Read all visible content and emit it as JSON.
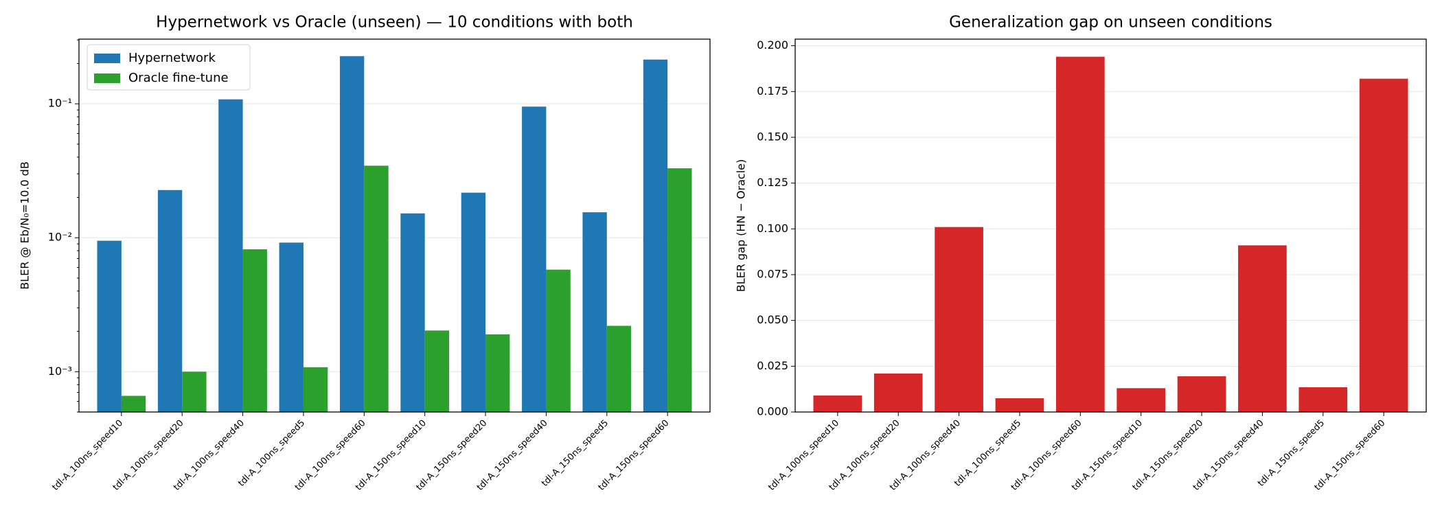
{
  "chart_data": [
    {
      "type": "bar",
      "title": "Hypernetwork vs Oracle (unseen) — 10 conditions with both",
      "y_label": "BLER @ Eb/N₀=10.0 dB",
      "log_y": true,
      "grid": true,
      "legend": "upper left",
      "categories": [
        "tdl-A_100ns_speed10",
        "tdl-A_100ns_speed20",
        "tdl-A_100ns_speed40",
        "tdl-A_100ns_speed5",
        "tdl-A_100ns_speed60",
        "tdl-A_150ns_speed10",
        "tdl-A_150ns_speed20",
        "tdl-A_150ns_speed40",
        "tdl-A_150ns_speed5",
        "tdl-A_150ns_speed60"
      ],
      "series": [
        {
          "name": "Hypernetwork",
          "color": "#1f77b4",
          "values": [
            0.0095,
            0.0227,
            0.108,
            0.0092,
            0.227,
            0.0152,
            0.0217,
            0.0953,
            0.0155,
            0.214
          ]
        },
        {
          "name": "Oracle fine-tune",
          "color": "#2ca02c",
          "values": [
            0.00066,
            0.001,
            0.0082,
            0.00108,
            0.0345,
            0.00203,
            0.0019,
            0.00578,
            0.0022,
            0.033
          ]
        }
      ],
      "ylim": [
        0.0005,
        0.304
      ],
      "yticks": [
        {
          "value": 0.001,
          "label": "10⁻³"
        },
        {
          "value": 0.01,
          "label": "10⁻²"
        },
        {
          "value": 0.1,
          "label": "10⁻¹"
        }
      ]
    },
    {
      "type": "bar",
      "title": "Generalization gap on unseen conditions",
      "y_label": "BLER gap (HN − Oracle)",
      "log_y": false,
      "grid": true,
      "categories": [
        "tdl-A_100ns_speed10",
        "tdl-A_100ns_speed20",
        "tdl-A_100ns_speed40",
        "tdl-A_100ns_speed5",
        "tdl-A_100ns_speed60",
        "tdl-A_150ns_speed10",
        "tdl-A_150ns_speed20",
        "tdl-A_150ns_speed40",
        "tdl-A_150ns_speed5",
        "tdl-A_150ns_speed60"
      ],
      "series": [
        {
          "color": "#d62728",
          "values": [
            0.009,
            0.021,
            0.101,
            0.0075,
            0.194,
            0.013,
            0.0195,
            0.091,
            0.0135,
            0.182
          ]
        }
      ],
      "ylim": [
        0,
        0.2036
      ],
      "yticks": [
        {
          "value": 0,
          "label": "0.000"
        },
        {
          "value": 0.025,
          "label": "0.025"
        },
        {
          "value": 0.05,
          "label": "0.050"
        },
        {
          "value": 0.075,
          "label": "0.075"
        },
        {
          "value": 0.1,
          "label": "0.100"
        },
        {
          "value": 0.125,
          "label": "0.125"
        },
        {
          "value": 0.15,
          "label": "0.150"
        },
        {
          "value": 0.175,
          "label": "0.175"
        },
        {
          "value": 0.2,
          "label": "0.200"
        }
      ]
    }
  ]
}
